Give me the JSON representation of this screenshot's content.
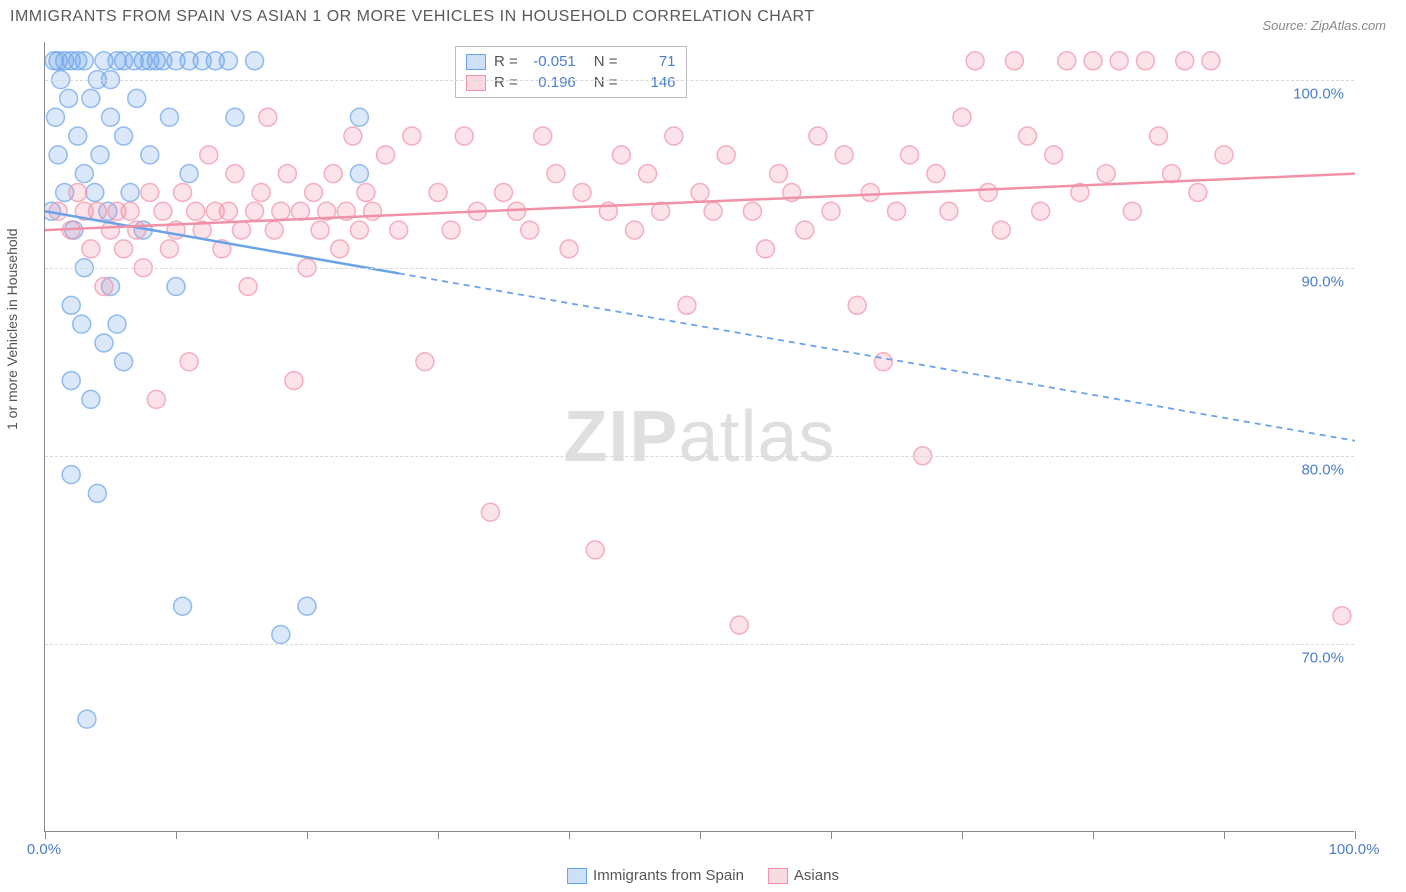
{
  "title": "IMMIGRANTS FROM SPAIN VS ASIAN 1 OR MORE VEHICLES IN HOUSEHOLD CORRELATION CHART",
  "source": "Source: ZipAtlas.com",
  "ylabel": "1 or more Vehicles in Household",
  "watermark_bold": "ZIP",
  "watermark_light": "atlas",
  "chart": {
    "type": "scatter",
    "background_color": "#ffffff",
    "grid_color": "#d8d8d8",
    "axis_color": "#888888",
    "label_color": "#4a7fc7",
    "marker_radius": 9,
    "marker_fill_opacity": 0.25,
    "marker_stroke_opacity": 0.7,
    "xlim": [
      0,
      100
    ],
    "ylim": [
      60,
      102
    ],
    "xtick_positions": [
      0,
      10,
      20,
      30,
      40,
      50,
      60,
      70,
      80,
      90,
      100
    ],
    "xtick_labels": {
      "0": "0.0%",
      "100": "100.0%"
    },
    "ytick_positions": [
      70,
      80,
      90,
      100
    ],
    "ytick_labels": [
      "70.0%",
      "80.0%",
      "90.0%",
      "100.0%"
    ],
    "series": [
      {
        "name": "Immigrants from Spain",
        "color": "#6ba3e8",
        "r": "-0.051",
        "n": "71",
        "trend": {
          "solid": {
            "x1": 0,
            "y1": 93.0,
            "x2": 27,
            "y2": 89.7
          },
          "dashed": {
            "x1": 27,
            "y1": 89.7,
            "x2": 100,
            "y2": 80.8
          }
        },
        "points": [
          [
            0.5,
            93
          ],
          [
            0.7,
            101
          ],
          [
            0.8,
            98
          ],
          [
            1,
            101
          ],
          [
            1,
            96
          ],
          [
            1.2,
            100
          ],
          [
            1.5,
            101
          ],
          [
            1.5,
            94
          ],
          [
            1.8,
            99
          ],
          [
            2,
            101
          ],
          [
            2,
            88
          ],
          [
            2,
            84
          ],
          [
            2,
            79
          ],
          [
            2.2,
            92
          ],
          [
            2.5,
            97
          ],
          [
            2.5,
            101
          ],
          [
            2.8,
            87
          ],
          [
            3,
            101
          ],
          [
            3,
            95
          ],
          [
            3,
            90
          ],
          [
            3.2,
            66
          ],
          [
            3.5,
            99
          ],
          [
            3.5,
            83
          ],
          [
            3.8,
            94
          ],
          [
            4,
            100
          ],
          [
            4,
            78
          ],
          [
            4.2,
            96
          ],
          [
            4.5,
            101
          ],
          [
            4.5,
            86
          ],
          [
            4.8,
            93
          ],
          [
            5,
            98
          ],
          [
            5,
            89
          ],
          [
            5,
            100
          ],
          [
            5.5,
            101
          ],
          [
            5.5,
            87
          ],
          [
            6,
            97
          ],
          [
            6,
            101
          ],
          [
            6,
            85
          ],
          [
            6.5,
            94
          ],
          [
            6.8,
            101
          ],
          [
            7,
            99
          ],
          [
            7.5,
            101
          ],
          [
            7.5,
            92
          ],
          [
            8,
            101
          ],
          [
            8,
            96
          ],
          [
            8.5,
            101
          ],
          [
            9,
            101
          ],
          [
            9.5,
            98
          ],
          [
            10,
            101
          ],
          [
            10,
            89
          ],
          [
            10.5,
            72
          ],
          [
            11,
            101
          ],
          [
            11,
            95
          ],
          [
            12,
            101
          ],
          [
            13,
            101
          ],
          [
            14,
            101
          ],
          [
            14.5,
            98
          ],
          [
            16,
            101
          ],
          [
            18,
            70.5
          ],
          [
            20,
            72
          ],
          [
            24,
            98
          ],
          [
            24,
            95
          ]
        ]
      },
      {
        "name": "Asians",
        "color": "#f191a8",
        "r": "0.196",
        "n": "146",
        "trend": {
          "solid": {
            "x1": 0,
            "y1": 92.0,
            "x2": 100,
            "y2": 95.0
          }
        },
        "points": [
          [
            1,
            93
          ],
          [
            2,
            92
          ],
          [
            2.5,
            94
          ],
          [
            3,
            93
          ],
          [
            3.5,
            91
          ],
          [
            4,
            93
          ],
          [
            4.5,
            89
          ],
          [
            5,
            92
          ],
          [
            5.5,
            93
          ],
          [
            6,
            91
          ],
          [
            6.5,
            93
          ],
          [
            7,
            92
          ],
          [
            7.5,
            90
          ],
          [
            8,
            94
          ],
          [
            8.5,
            83
          ],
          [
            9,
            93
          ],
          [
            9.5,
            91
          ],
          [
            10,
            92
          ],
          [
            10.5,
            94
          ],
          [
            11,
            85
          ],
          [
            11.5,
            93
          ],
          [
            12,
            92
          ],
          [
            12.5,
            96
          ],
          [
            13,
            93
          ],
          [
            13.5,
            91
          ],
          [
            14,
            93
          ],
          [
            14.5,
            95
          ],
          [
            15,
            92
          ],
          [
            15.5,
            89
          ],
          [
            16,
            93
          ],
          [
            16.5,
            94
          ],
          [
            17,
            98
          ],
          [
            17.5,
            92
          ],
          [
            18,
            93
          ],
          [
            18.5,
            95
          ],
          [
            19,
            84
          ],
          [
            19.5,
            93
          ],
          [
            20,
            90
          ],
          [
            20.5,
            94
          ],
          [
            21,
            92
          ],
          [
            21.5,
            93
          ],
          [
            22,
            95
          ],
          [
            22.5,
            91
          ],
          [
            23,
            93
          ],
          [
            23.5,
            97
          ],
          [
            24,
            92
          ],
          [
            24.5,
            94
          ],
          [
            25,
            93
          ],
          [
            26,
            96
          ],
          [
            27,
            92
          ],
          [
            28,
            97
          ],
          [
            29,
            85
          ],
          [
            30,
            94
          ],
          [
            31,
            92
          ],
          [
            32,
            97
          ],
          [
            33,
            93
          ],
          [
            34,
            77
          ],
          [
            35,
            94
          ],
          [
            36,
            93
          ],
          [
            37,
            92
          ],
          [
            38,
            97
          ],
          [
            39,
            95
          ],
          [
            40,
            91
          ],
          [
            41,
            94
          ],
          [
            42,
            75
          ],
          [
            43,
            93
          ],
          [
            44,
            96
          ],
          [
            45,
            92
          ],
          [
            46,
            95
          ],
          [
            47,
            93
          ],
          [
            48,
            97
          ],
          [
            49,
            88
          ],
          [
            50,
            94
          ],
          [
            51,
            93
          ],
          [
            52,
            96
          ],
          [
            53,
            71
          ],
          [
            54,
            93
          ],
          [
            55,
            91
          ],
          [
            56,
            95
          ],
          [
            57,
            94
          ],
          [
            58,
            92
          ],
          [
            59,
            97
          ],
          [
            60,
            93
          ],
          [
            61,
            96
          ],
          [
            62,
            88
          ],
          [
            63,
            94
          ],
          [
            64,
            85
          ],
          [
            65,
            93
          ],
          [
            66,
            96
          ],
          [
            67,
            80
          ],
          [
            68,
            95
          ],
          [
            69,
            93
          ],
          [
            70,
            98
          ],
          [
            71,
            101
          ],
          [
            72,
            94
          ],
          [
            73,
            92
          ],
          [
            74,
            101
          ],
          [
            75,
            97
          ],
          [
            76,
            93
          ],
          [
            77,
            96
          ],
          [
            78,
            101
          ],
          [
            79,
            94
          ],
          [
            80,
            101
          ],
          [
            81,
            95
          ],
          [
            82,
            101
          ],
          [
            83,
            93
          ],
          [
            84,
            101
          ],
          [
            85,
            97
          ],
          [
            86,
            95
          ],
          [
            87,
            101
          ],
          [
            88,
            94
          ],
          [
            89,
            101
          ],
          [
            90,
            96
          ],
          [
            99,
            71.5
          ]
        ]
      }
    ]
  },
  "legend_bottom": [
    {
      "color": "#6ba3e8",
      "label": "Immigrants from Spain"
    },
    {
      "color": "#f191a8",
      "label": "Asians"
    }
  ]
}
